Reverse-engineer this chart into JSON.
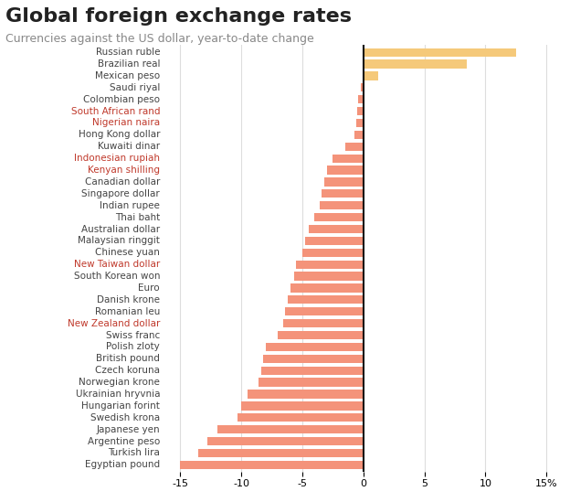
{
  "title": "Global foreign exchange rates",
  "subtitle": "Currencies against the US dollar, year-to-date change",
  "categories": [
    "Russian ruble",
    "Brazilian real",
    "Mexican peso",
    "Saudi riyal",
    "Colombian peso",
    "South African rand",
    "Nigerian naira",
    "Hong Kong dollar",
    "Kuwaiti dinar",
    "Indonesian rupiah",
    "Kenyan shilling",
    "Canadian dollar",
    "Singapore dollar",
    "Indian rupee",
    "Thai baht",
    "Australian dollar",
    "Malaysian ringgit",
    "Chinese yuan",
    "New Taiwan dollar",
    "South Korean won",
    "Euro",
    "Danish krone",
    "Romanian leu",
    "New Zealand dollar",
    "Swiss franc",
    "Polish zloty",
    "British pound",
    "Czech koruna",
    "Norwegian krone",
    "Ukrainian hryvnia",
    "Hungarian forint",
    "Swedish krona",
    "Japanese yen",
    "Argentine peso",
    "Turkish lira",
    "Egyptian pound"
  ],
  "values": [
    12.5,
    8.5,
    1.2,
    -0.2,
    -0.4,
    -0.5,
    -0.6,
    -0.7,
    -1.5,
    -2.5,
    -3.0,
    -3.2,
    -3.4,
    -3.6,
    -4.0,
    -4.5,
    -4.8,
    -5.0,
    -5.5,
    -5.7,
    -6.0,
    -6.2,
    -6.4,
    -6.6,
    -7.0,
    -8.0,
    -8.2,
    -8.4,
    -8.6,
    -9.5,
    -10.0,
    -10.3,
    -12.0,
    -12.8,
    -13.5,
    -15.0
  ],
  "label_colors": {
    "Russian ruble": "#444444",
    "Brazilian real": "#444444",
    "Mexican peso": "#444444",
    "Saudi riyal": "#444444",
    "Colombian peso": "#444444",
    "South African rand": "#c0392b",
    "Nigerian naira": "#c0392b",
    "Hong Kong dollar": "#444444",
    "Kuwaiti dinar": "#444444",
    "Indonesian rupiah": "#c0392b",
    "Kenyan shilling": "#c0392b",
    "Canadian dollar": "#444444",
    "Singapore dollar": "#444444",
    "Indian rupee": "#444444",
    "Thai baht": "#444444",
    "Australian dollar": "#444444",
    "Malaysian ringgit": "#444444",
    "Chinese yuan": "#444444",
    "New Taiwan dollar": "#c0392b",
    "South Korean won": "#444444",
    "Euro": "#444444",
    "Danish krone": "#444444",
    "Romanian leu": "#444444",
    "New Zealand dollar": "#c0392b",
    "Swiss franc": "#444444",
    "Polish zloty": "#444444",
    "British pound": "#444444",
    "Czech koruna": "#444444",
    "Norwegian krone": "#444444",
    "Ukrainian hryvnia": "#444444",
    "Hungarian forint": "#444444",
    "Swedish krona": "#444444",
    "Japanese yen": "#444444",
    "Argentine peso": "#444444",
    "Turkish lira": "#444444",
    "Egyptian pound": "#444444"
  },
  "positive_color": "#f5c97a",
  "negative_color": "#f4937a",
  "xlim": [
    -16,
    16
  ],
  "xticks": [
    -15,
    -10,
    -5,
    0,
    5,
    10,
    15
  ],
  "xticklabels": [
    "-15",
    "-10",
    "-5",
    "0",
    "5",
    "10",
    "15%"
  ],
  "title_fontsize": 16,
  "subtitle_fontsize": 9,
  "label_fontsize": 7.5,
  "tick_fontsize": 8,
  "background_color": "#ffffff",
  "grid_color": "#dddddd",
  "bar_height": 0.72
}
